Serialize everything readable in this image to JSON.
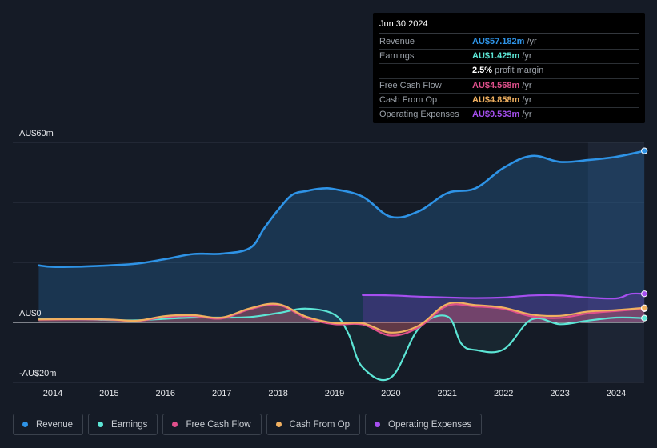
{
  "tooltip": {
    "date": "Jun 30 2024",
    "rows": [
      {
        "label": "Revenue",
        "value": "AU$57.182m",
        "unit": "/yr",
        "color": "#2e93e6"
      },
      {
        "label": "Earnings",
        "value": "AU$1.425m",
        "unit": "/yr",
        "color": "#5ce5d5"
      },
      {
        "label": "",
        "value": "2.5%",
        "unit": "profit margin",
        "color": "#ffffff"
      },
      {
        "label": "Free Cash Flow",
        "value": "AU$4.568m",
        "unit": "/yr",
        "color": "#e0508c"
      },
      {
        "label": "Cash From Op",
        "value": "AU$4.858m",
        "unit": "/yr",
        "color": "#f0b060"
      },
      {
        "label": "Operating Expenses",
        "value": "AU$9.533m",
        "unit": "/yr",
        "color": "#a64ff0"
      }
    ]
  },
  "legend": [
    {
      "label": "Revenue",
      "color": "#2e93e6"
    },
    {
      "label": "Earnings",
      "color": "#5ce5d5"
    },
    {
      "label": "Free Cash Flow",
      "color": "#e0508c"
    },
    {
      "label": "Cash From Op",
      "color": "#f0b060"
    },
    {
      "label": "Operating Expenses",
      "color": "#a64ff0"
    }
  ],
  "chart_data": {
    "type": "area",
    "title": "",
    "xlabel": "",
    "ylabel": "",
    "ylim": [
      -20,
      60
    ],
    "y_tick_labels": [
      {
        "value": 60,
        "label": "AU$60m"
      },
      {
        "value": 0,
        "label": "AU$0"
      },
      {
        "value": -20,
        "label": "-AU$20m"
      }
    ],
    "x_tick_labels": [
      "2014",
      "2015",
      "2016",
      "2017",
      "2018",
      "2019",
      "2020",
      "2021",
      "2022",
      "2023",
      "2024"
    ],
    "highlight_from": 2023.5,
    "series": [
      {
        "name": "Revenue",
        "color": "#2e93e6",
        "points": [
          [
            2013.75,
            19.0
          ],
          [
            2014.0,
            18.5
          ],
          [
            2014.5,
            18.6
          ],
          [
            2015.0,
            19.0
          ],
          [
            2015.5,
            19.6
          ],
          [
            2016.0,
            21.1
          ],
          [
            2016.5,
            22.8
          ],
          [
            2017.0,
            22.9
          ],
          [
            2017.5,
            24.8
          ],
          [
            2017.75,
            31.3
          ],
          [
            2018.0,
            37.5
          ],
          [
            2018.25,
            42.5
          ],
          [
            2018.5,
            43.8
          ],
          [
            2018.75,
            44.6
          ],
          [
            2019.0,
            44.4
          ],
          [
            2019.5,
            41.9
          ],
          [
            2020.0,
            35.2
          ],
          [
            2020.5,
            37.1
          ],
          [
            2021.0,
            43.1
          ],
          [
            2021.5,
            44.7
          ],
          [
            2022.0,
            51.5
          ],
          [
            2022.5,
            55.5
          ],
          [
            2023.0,
            53.5
          ],
          [
            2023.5,
            54.1
          ],
          [
            2024.0,
            55.2
          ],
          [
            2024.5,
            57.182
          ]
        ]
      },
      {
        "name": "Earnings",
        "color": "#5ce5d5",
        "points": [
          [
            2013.75,
            1.1
          ],
          [
            2014.5,
            1.0
          ],
          [
            2015.0,
            0.8
          ],
          [
            2015.5,
            0.7
          ],
          [
            2016.0,
            1.2
          ],
          [
            2016.5,
            1.6
          ],
          [
            2017.0,
            1.6
          ],
          [
            2017.5,
            1.8
          ],
          [
            2018.0,
            3.1
          ],
          [
            2018.5,
            4.6
          ],
          [
            2019.0,
            2.6
          ],
          [
            2019.25,
            -3.9
          ],
          [
            2019.5,
            -15.0
          ],
          [
            2020.0,
            -18.4
          ],
          [
            2020.5,
            -1.9
          ],
          [
            2021.0,
            2.0
          ],
          [
            2021.25,
            -7.1
          ],
          [
            2021.5,
            -9.2
          ],
          [
            2022.0,
            -9.0
          ],
          [
            2022.5,
            1.0
          ],
          [
            2023.0,
            -0.6
          ],
          [
            2023.5,
            0.6
          ],
          [
            2024.0,
            1.6
          ],
          [
            2024.5,
            1.425
          ]
        ]
      },
      {
        "name": "Free Cash Flow",
        "color": "#e0508c",
        "points": [
          [
            2013.75,
            0.9
          ],
          [
            2014.5,
            1.0
          ],
          [
            2015.0,
            0.9
          ],
          [
            2015.5,
            0.5
          ],
          [
            2016.0,
            1.8
          ],
          [
            2016.5,
            2.1
          ],
          [
            2017.0,
            1.3
          ],
          [
            2017.5,
            4.4
          ],
          [
            2018.0,
            5.8
          ],
          [
            2018.5,
            1.5
          ],
          [
            2019.0,
            -0.6
          ],
          [
            2019.5,
            -0.7
          ],
          [
            2020.0,
            -4.4
          ],
          [
            2020.5,
            -1.6
          ],
          [
            2021.0,
            5.5
          ],
          [
            2021.5,
            5.3
          ],
          [
            2022.0,
            4.5
          ],
          [
            2022.5,
            2.0
          ],
          [
            2023.0,
            1.5
          ],
          [
            2023.5,
            3.0
          ],
          [
            2024.0,
            3.8
          ],
          [
            2024.5,
            4.568
          ]
        ]
      },
      {
        "name": "Cash From Op",
        "color": "#f0b060",
        "points": [
          [
            2013.75,
            1.0
          ],
          [
            2014.5,
            1.1
          ],
          [
            2015.0,
            1.0
          ],
          [
            2015.5,
            0.6
          ],
          [
            2016.0,
            2.1
          ],
          [
            2016.5,
            2.4
          ],
          [
            2017.0,
            1.6
          ],
          [
            2017.5,
            4.7
          ],
          [
            2018.0,
            6.1
          ],
          [
            2018.5,
            1.9
          ],
          [
            2019.0,
            -0.2
          ],
          [
            2019.5,
            -0.3
          ],
          [
            2020.0,
            -3.4
          ],
          [
            2020.5,
            -1.0
          ],
          [
            2021.0,
            6.1
          ],
          [
            2021.5,
            5.8
          ],
          [
            2022.0,
            4.9
          ],
          [
            2022.5,
            2.6
          ],
          [
            2023.0,
            2.2
          ],
          [
            2023.5,
            3.6
          ],
          [
            2024.0,
            4.1
          ],
          [
            2024.5,
            4.858
          ]
        ]
      },
      {
        "name": "Operating Expenses",
        "color": "#a64ff0",
        "points": [
          [
            2019.5,
            9.1
          ],
          [
            2020.0,
            9.0
          ],
          [
            2020.5,
            8.6
          ],
          [
            2021.0,
            8.3
          ],
          [
            2021.5,
            8.1
          ],
          [
            2022.0,
            8.3
          ],
          [
            2022.5,
            9.0
          ],
          [
            2023.0,
            9.0
          ],
          [
            2023.5,
            8.3
          ],
          [
            2024.0,
            8.0
          ],
          [
            2024.25,
            9.5
          ],
          [
            2024.5,
            9.533
          ]
        ]
      }
    ]
  }
}
